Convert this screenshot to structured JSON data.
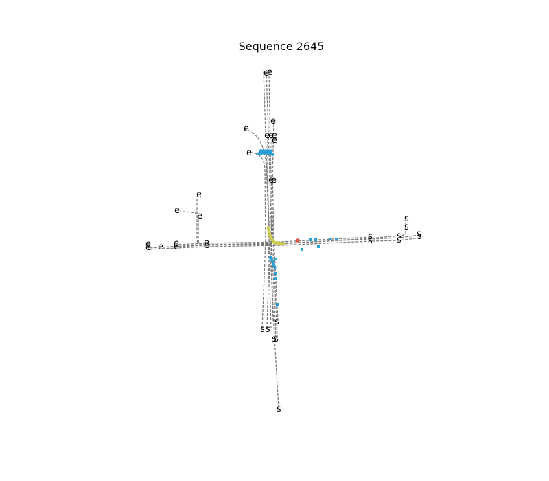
{
  "title": "Sequence 2645",
  "marker_start": "s",
  "marker_end": "e",
  "colors": {
    "lane": "#7a7a7a",
    "agent_blue": "#2a9fd6",
    "agent_yellow": "#cccc55",
    "agent_red": "#d9534f"
  }
}
